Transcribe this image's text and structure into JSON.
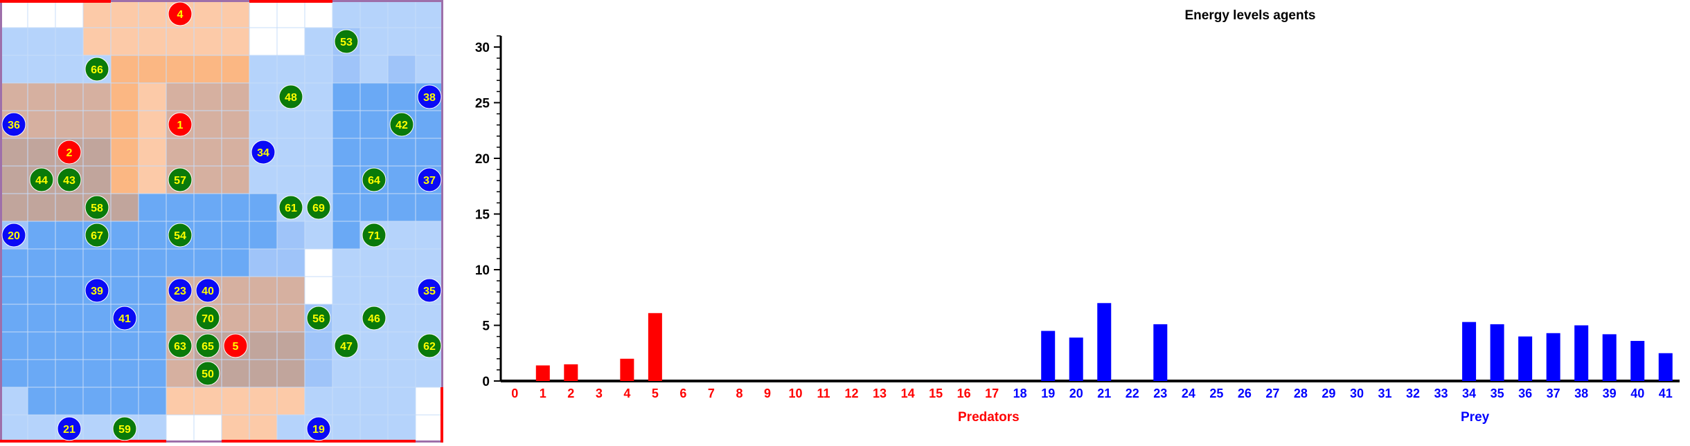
{
  "world": {
    "size": 16,
    "colors": {
      "empty": "#ffffff",
      "light": "#b5d3fb",
      "mid": "#9fc4f9",
      "deep": "#6aa9f5",
      "orange": "#fbb783",
      "warm": "#d6b0a0",
      "brown": "#c1a59c",
      "peach": "#fccaa8",
      "predator": "#ff0000",
      "prey_plain": "#0a0af5",
      "prey_feeding": "#0a7a0a",
      "border": "#9e6faa",
      "edge_marker": "#ff0000",
      "label": "#ffff00"
    },
    "rows": [
      "EEEPPPPPPEEELLLL",
      "LLLPPPPPPEELMLLL",
      "LLLLOOOOOLLLMLML",
      "WWWWOPWWWLLLDDDD",
      "WWWWOPWWWLLLDDDD",
      "BBBBOPWWWLLLDDDD",
      "BBBBOPWWWLLLDDDD",
      "BBBBBDDDDDLLDDDD",
      "MDDDDDDDDDMLDLLL",
      "DDDDDDDDDMMELLLL",
      "DDDDDDWWWWWELLLL",
      "DDDDDDWWWWWMLLLL",
      "DDDDDDWBBBBMLLLL",
      "DDDDDDWBBBBMLLLL",
      "LDDDDDPPPPPLLLLE",
      "LLLLLLEEPPLLLLLE"
    ],
    "edge_marks": {
      "top": [
        [
          0,
          4
        ],
        [
          9,
          12
        ]
      ],
      "bottom": [
        [
          0,
          6
        ],
        [
          8,
          15
        ]
      ],
      "right": [
        [
          14,
          16
        ]
      ]
    },
    "agents": [
      {
        "id": "4",
        "kind": "predator",
        "cell": [
          6,
          0
        ]
      },
      {
        "id": "53",
        "kind": "prey_feeding",
        "cell": [
          12,
          1
        ]
      },
      {
        "id": "66",
        "kind": "prey_feeding",
        "cell": [
          3,
          2
        ]
      },
      {
        "id": "48",
        "kind": "prey_feeding",
        "cell": [
          10,
          3
        ]
      },
      {
        "id": "38",
        "kind": "prey_plain",
        "cell": [
          15,
          3
        ]
      },
      {
        "id": "36",
        "kind": "prey_plain",
        "cell": [
          0,
          4
        ]
      },
      {
        "id": "1",
        "kind": "predator",
        "cell": [
          6,
          4
        ]
      },
      {
        "id": "42",
        "kind": "prey_feeding",
        "cell": [
          14,
          4
        ]
      },
      {
        "id": "2",
        "kind": "predator",
        "cell": [
          2,
          5
        ]
      },
      {
        "id": "34",
        "kind": "prey_plain",
        "cell": [
          9,
          5
        ]
      },
      {
        "id": "44",
        "kind": "prey_feeding",
        "cell": [
          1,
          6
        ]
      },
      {
        "id": "43",
        "kind": "prey_feeding",
        "cell": [
          2,
          6
        ]
      },
      {
        "id": "57",
        "kind": "prey_feeding",
        "cell": [
          6,
          6
        ]
      },
      {
        "id": "64",
        "kind": "prey_feeding",
        "cell": [
          13,
          6
        ]
      },
      {
        "id": "37",
        "kind": "prey_plain",
        "cell": [
          15,
          6
        ]
      },
      {
        "id": "58",
        "kind": "prey_feeding",
        "cell": [
          3,
          7
        ]
      },
      {
        "id": "61",
        "kind": "prey_feeding",
        "cell": [
          10,
          7
        ]
      },
      {
        "id": "69",
        "kind": "prey_feeding",
        "cell": [
          11,
          7
        ]
      },
      {
        "id": "20",
        "kind": "prey_plain",
        "cell": [
          0,
          8
        ]
      },
      {
        "id": "67",
        "kind": "prey_feeding",
        "cell": [
          3,
          8
        ]
      },
      {
        "id": "54",
        "kind": "prey_feeding",
        "cell": [
          6,
          8
        ]
      },
      {
        "id": "71",
        "kind": "prey_feeding",
        "cell": [
          13,
          8
        ]
      },
      {
        "id": "39",
        "kind": "prey_plain",
        "cell": [
          3,
          10
        ]
      },
      {
        "id": "23",
        "kind": "prey_plain",
        "cell": [
          6,
          10
        ]
      },
      {
        "id": "40",
        "kind": "prey_plain",
        "cell": [
          7,
          10
        ]
      },
      {
        "id": "35",
        "kind": "prey_plain",
        "cell": [
          15,
          10
        ]
      },
      {
        "id": "41",
        "kind": "prey_plain",
        "cell": [
          4,
          11
        ]
      },
      {
        "id": "70",
        "kind": "prey_feeding",
        "cell": [
          7,
          11
        ]
      },
      {
        "id": "56",
        "kind": "prey_feeding",
        "cell": [
          11,
          11
        ]
      },
      {
        "id": "46",
        "kind": "prey_feeding",
        "cell": [
          13,
          11
        ]
      },
      {
        "id": "63",
        "kind": "prey_feeding",
        "cell": [
          6,
          12
        ]
      },
      {
        "id": "65",
        "kind": "prey_feeding",
        "cell": [
          7,
          12
        ]
      },
      {
        "id": "5",
        "kind": "predator",
        "cell": [
          8,
          12
        ]
      },
      {
        "id": "47",
        "kind": "prey_feeding",
        "cell": [
          12,
          12
        ]
      },
      {
        "id": "62",
        "kind": "prey_feeding",
        "cell": [
          15,
          12
        ]
      },
      {
        "id": "50",
        "kind": "prey_feeding",
        "cell": [
          7,
          13
        ]
      },
      {
        "id": "21",
        "kind": "prey_plain",
        "cell": [
          2,
          15
        ]
      },
      {
        "id": "59",
        "kind": "prey_feeding",
        "cell": [
          4,
          15
        ]
      },
      {
        "id": "19",
        "kind": "prey_plain",
        "cell": [
          11,
          15
        ]
      }
    ]
  },
  "chart_data": {
    "type": "bar",
    "title": "Energy levels agents",
    "xlabel": "",
    "ylabel": "",
    "ylim": [
      0,
      31
    ],
    "yticks": [
      0,
      5,
      10,
      15,
      20,
      25,
      30
    ],
    "categories": [
      "0",
      "1",
      "2",
      "3",
      "4",
      "5",
      "6",
      "7",
      "8",
      "9",
      "10",
      "11",
      "12",
      "13",
      "14",
      "15",
      "16",
      "17",
      "18",
      "19",
      "20",
      "21",
      "22",
      "23",
      "24",
      "25",
      "26",
      "27",
      "28",
      "29",
      "30",
      "31",
      "32",
      "33",
      "34",
      "35",
      "36",
      "37",
      "38",
      "39",
      "40",
      "41"
    ],
    "series": [
      {
        "name": "Predators",
        "color": "#ff0000",
        "values": [
          0,
          1.4,
          1.5,
          0,
          2.0,
          6.1,
          0,
          0,
          0,
          0,
          0,
          0,
          0,
          0,
          0,
          0,
          0,
          0,
          null,
          null,
          null,
          null,
          null,
          null,
          null,
          null,
          null,
          null,
          null,
          null,
          null,
          null,
          null,
          null,
          null,
          null,
          null,
          null,
          null,
          null,
          null,
          null
        ]
      },
      {
        "name": "Prey",
        "color": "#0000ff",
        "values": [
          null,
          null,
          null,
          null,
          null,
          null,
          null,
          null,
          null,
          null,
          null,
          null,
          null,
          null,
          null,
          null,
          null,
          null,
          0,
          4.5,
          3.9,
          7.0,
          0,
          5.1,
          0,
          0,
          0,
          0,
          0,
          0,
          0,
          0,
          0,
          0,
          5.3,
          5.1,
          4.0,
          4.3,
          5.0,
          4.2,
          3.6,
          2.5
        ]
      }
    ],
    "legend": [
      {
        "label": "Predators",
        "color": "#ff0000"
      },
      {
        "label": "Prey",
        "color": "#0000ff"
      }
    ]
  }
}
